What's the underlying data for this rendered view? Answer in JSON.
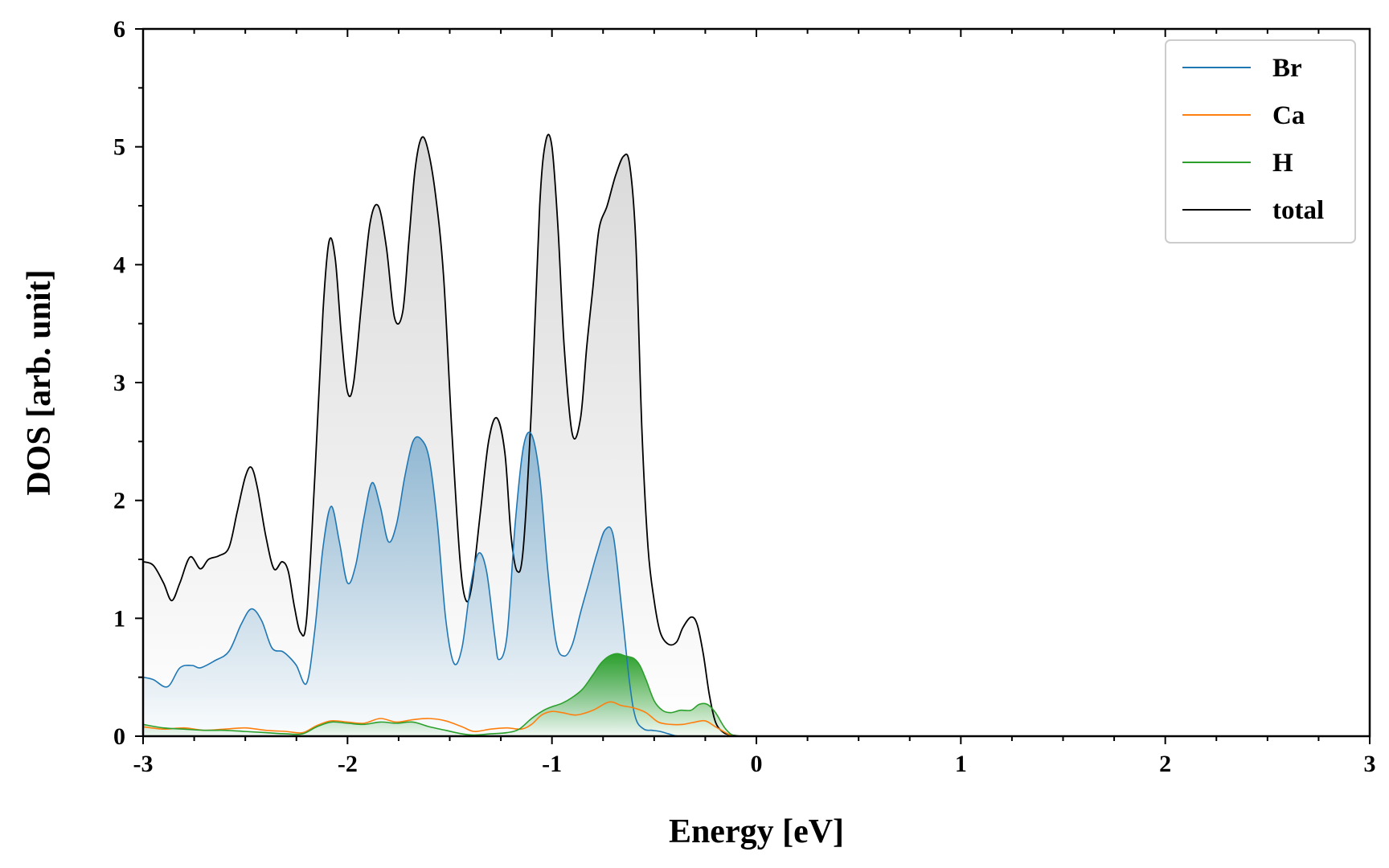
{
  "chart_data": {
    "type": "area",
    "xlabel": "Energy [eV]",
    "ylabel": "DOS [arb. unit]",
    "xlim": [
      -3,
      3
    ],
    "ylim": [
      0,
      6
    ],
    "xticks": [
      -3,
      -2,
      -1,
      0,
      1,
      2,
      3
    ],
    "xtick_labels": [
      "-3",
      "-2",
      "-1",
      "0",
      "1",
      "2",
      "3"
    ],
    "yticks": [
      0,
      1,
      2,
      3,
      4,
      5,
      6
    ],
    "ytick_labels": [
      "0",
      "1",
      "2",
      "3",
      "4",
      "5",
      "6"
    ],
    "grid": false,
    "legend_position": "top-right",
    "series": [
      {
        "name": "Br",
        "color": "#1f77b4",
        "filled": true,
        "x": [
          -3.0,
          -2.95,
          -2.88,
          -2.82,
          -2.76,
          -2.72,
          -2.65,
          -2.58,
          -2.52,
          -2.47,
          -2.42,
          -2.37,
          -2.32,
          -2.29,
          -2.25,
          -2.2,
          -2.16,
          -2.12,
          -2.08,
          -2.04,
          -2.0,
          -1.96,
          -1.92,
          -1.88,
          -1.84,
          -1.8,
          -1.76,
          -1.72,
          -1.68,
          -1.64,
          -1.6,
          -1.56,
          -1.52,
          -1.48,
          -1.44,
          -1.4,
          -1.36,
          -1.32,
          -1.28,
          -1.26,
          -1.22,
          -1.18,
          -1.14,
          -1.1,
          -1.06,
          -1.02,
          -0.98,
          -0.94,
          -0.9,
          -0.86,
          -0.82,
          -0.78,
          -0.74,
          -0.7,
          -0.66,
          -0.62,
          -0.59,
          -0.55,
          -0.51,
          -0.47,
          -0.43,
          -0.38,
          -0.3,
          -0.22,
          -0.15,
          -0.1,
          0.0,
          3.0
        ],
        "y": [
          0.5,
          0.48,
          0.42,
          0.58,
          0.6,
          0.58,
          0.64,
          0.72,
          0.95,
          1.08,
          0.98,
          0.75,
          0.72,
          0.68,
          0.6,
          0.45,
          0.9,
          1.6,
          1.95,
          1.65,
          1.3,
          1.45,
          1.85,
          2.15,
          1.95,
          1.65,
          1.8,
          2.2,
          2.5,
          2.52,
          2.35,
          1.8,
          1.0,
          0.62,
          0.75,
          1.25,
          1.55,
          1.4,
          0.85,
          0.65,
          0.85,
          1.8,
          2.45,
          2.56,
          2.2,
          1.4,
          0.8,
          0.68,
          0.78,
          1.05,
          1.3,
          1.55,
          1.75,
          1.7,
          1.1,
          0.45,
          0.15,
          0.06,
          0.05,
          0.04,
          0.02,
          0.0,
          0.0,
          0.0,
          0.0,
          0.0,
          0.0,
          0.0
        ]
      },
      {
        "name": "Ca",
        "color": "#ff7f0e",
        "filled": false,
        "x": [
          -3.0,
          -2.9,
          -2.8,
          -2.7,
          -2.6,
          -2.5,
          -2.4,
          -2.3,
          -2.22,
          -2.15,
          -2.08,
          -2.0,
          -1.92,
          -1.84,
          -1.76,
          -1.68,
          -1.6,
          -1.52,
          -1.44,
          -1.38,
          -1.3,
          -1.22,
          -1.15,
          -1.1,
          -1.05,
          -1.0,
          -0.95,
          -0.88,
          -0.8,
          -0.72,
          -0.66,
          -0.6,
          -0.54,
          -0.48,
          -0.42,
          -0.36,
          -0.3,
          -0.25,
          -0.2,
          -0.14,
          -0.1,
          0.0,
          3.0
        ],
        "y": [
          0.08,
          0.06,
          0.07,
          0.05,
          0.06,
          0.07,
          0.05,
          0.04,
          0.03,
          0.09,
          0.13,
          0.12,
          0.11,
          0.15,
          0.12,
          0.14,
          0.15,
          0.13,
          0.08,
          0.04,
          0.06,
          0.07,
          0.06,
          0.1,
          0.18,
          0.21,
          0.2,
          0.18,
          0.22,
          0.29,
          0.26,
          0.24,
          0.2,
          0.12,
          0.1,
          0.1,
          0.12,
          0.13,
          0.08,
          0.02,
          0.0,
          0.0,
          0.0
        ]
      },
      {
        "name": "H",
        "color": "#2ca02c",
        "filled": true,
        "x": [
          -3.0,
          -2.9,
          -2.8,
          -2.7,
          -2.6,
          -2.5,
          -2.4,
          -2.3,
          -2.22,
          -2.15,
          -2.08,
          -2.0,
          -1.92,
          -1.84,
          -1.76,
          -1.68,
          -1.6,
          -1.52,
          -1.44,
          -1.38,
          -1.3,
          -1.22,
          -1.16,
          -1.1,
          -1.04,
          -1.0,
          -0.95,
          -0.9,
          -0.85,
          -0.8,
          -0.76,
          -0.72,
          -0.68,
          -0.64,
          -0.6,
          -0.57,
          -0.54,
          -0.5,
          -0.46,
          -0.42,
          -0.37,
          -0.32,
          -0.28,
          -0.24,
          -0.2,
          -0.15,
          -0.1,
          0.0,
          3.0
        ],
        "y": [
          0.1,
          0.07,
          0.06,
          0.05,
          0.05,
          0.04,
          0.03,
          0.02,
          0.02,
          0.08,
          0.12,
          0.11,
          0.1,
          0.12,
          0.11,
          0.12,
          0.08,
          0.05,
          0.02,
          0.01,
          0.02,
          0.03,
          0.06,
          0.15,
          0.22,
          0.25,
          0.28,
          0.33,
          0.4,
          0.52,
          0.62,
          0.68,
          0.7,
          0.68,
          0.66,
          0.6,
          0.48,
          0.3,
          0.22,
          0.2,
          0.22,
          0.22,
          0.27,
          0.27,
          0.2,
          0.06,
          0.0,
          0.0,
          0.0
        ]
      },
      {
        "name": "total",
        "color": "#000000",
        "filled": true,
        "x": [
          -3.0,
          -2.95,
          -2.9,
          -2.86,
          -2.82,
          -2.77,
          -2.72,
          -2.68,
          -2.63,
          -2.58,
          -2.54,
          -2.5,
          -2.47,
          -2.44,
          -2.4,
          -2.36,
          -2.32,
          -2.29,
          -2.26,
          -2.23,
          -2.2,
          -2.16,
          -2.12,
          -2.09,
          -2.06,
          -2.03,
          -2.0,
          -1.97,
          -1.93,
          -1.89,
          -1.85,
          -1.81,
          -1.77,
          -1.73,
          -1.7,
          -1.67,
          -1.64,
          -1.61,
          -1.57,
          -1.53,
          -1.49,
          -1.45,
          -1.42,
          -1.39,
          -1.35,
          -1.31,
          -1.27,
          -1.23,
          -1.2,
          -1.17,
          -1.14,
          -1.1,
          -1.06,
          -1.03,
          -1.0,
          -0.97,
          -0.94,
          -0.9,
          -0.86,
          -0.83,
          -0.8,
          -0.77,
          -0.73,
          -0.69,
          -0.65,
          -0.62,
          -0.59,
          -0.56,
          -0.53,
          -0.5,
          -0.47,
          -0.43,
          -0.39,
          -0.36,
          -0.32,
          -0.29,
          -0.26,
          -0.23,
          -0.2,
          -0.16,
          -0.12,
          -0.08,
          0.0,
          3.0
        ],
        "y": [
          1.48,
          1.45,
          1.3,
          1.15,
          1.3,
          1.52,
          1.42,
          1.5,
          1.53,
          1.6,
          1.9,
          2.2,
          2.28,
          2.1,
          1.7,
          1.42,
          1.48,
          1.4,
          1.1,
          0.88,
          1.0,
          2.2,
          3.6,
          4.2,
          4.05,
          3.4,
          2.92,
          3.0,
          3.7,
          4.35,
          4.5,
          4.15,
          3.55,
          3.6,
          4.2,
          4.8,
          5.07,
          5.0,
          4.6,
          3.9,
          2.6,
          1.5,
          1.15,
          1.3,
          1.9,
          2.5,
          2.7,
          2.4,
          1.7,
          1.4,
          1.6,
          2.8,
          4.5,
          5.05,
          5.0,
          4.3,
          3.3,
          2.56,
          2.7,
          3.3,
          3.8,
          4.3,
          4.5,
          4.75,
          4.92,
          4.85,
          4.2,
          2.6,
          1.6,
          1.15,
          0.88,
          0.78,
          0.8,
          0.92,
          1.01,
          0.95,
          0.7,
          0.35,
          0.12,
          0.03,
          0.01,
          0.0,
          0.0,
          0.0
        ]
      }
    ]
  }
}
